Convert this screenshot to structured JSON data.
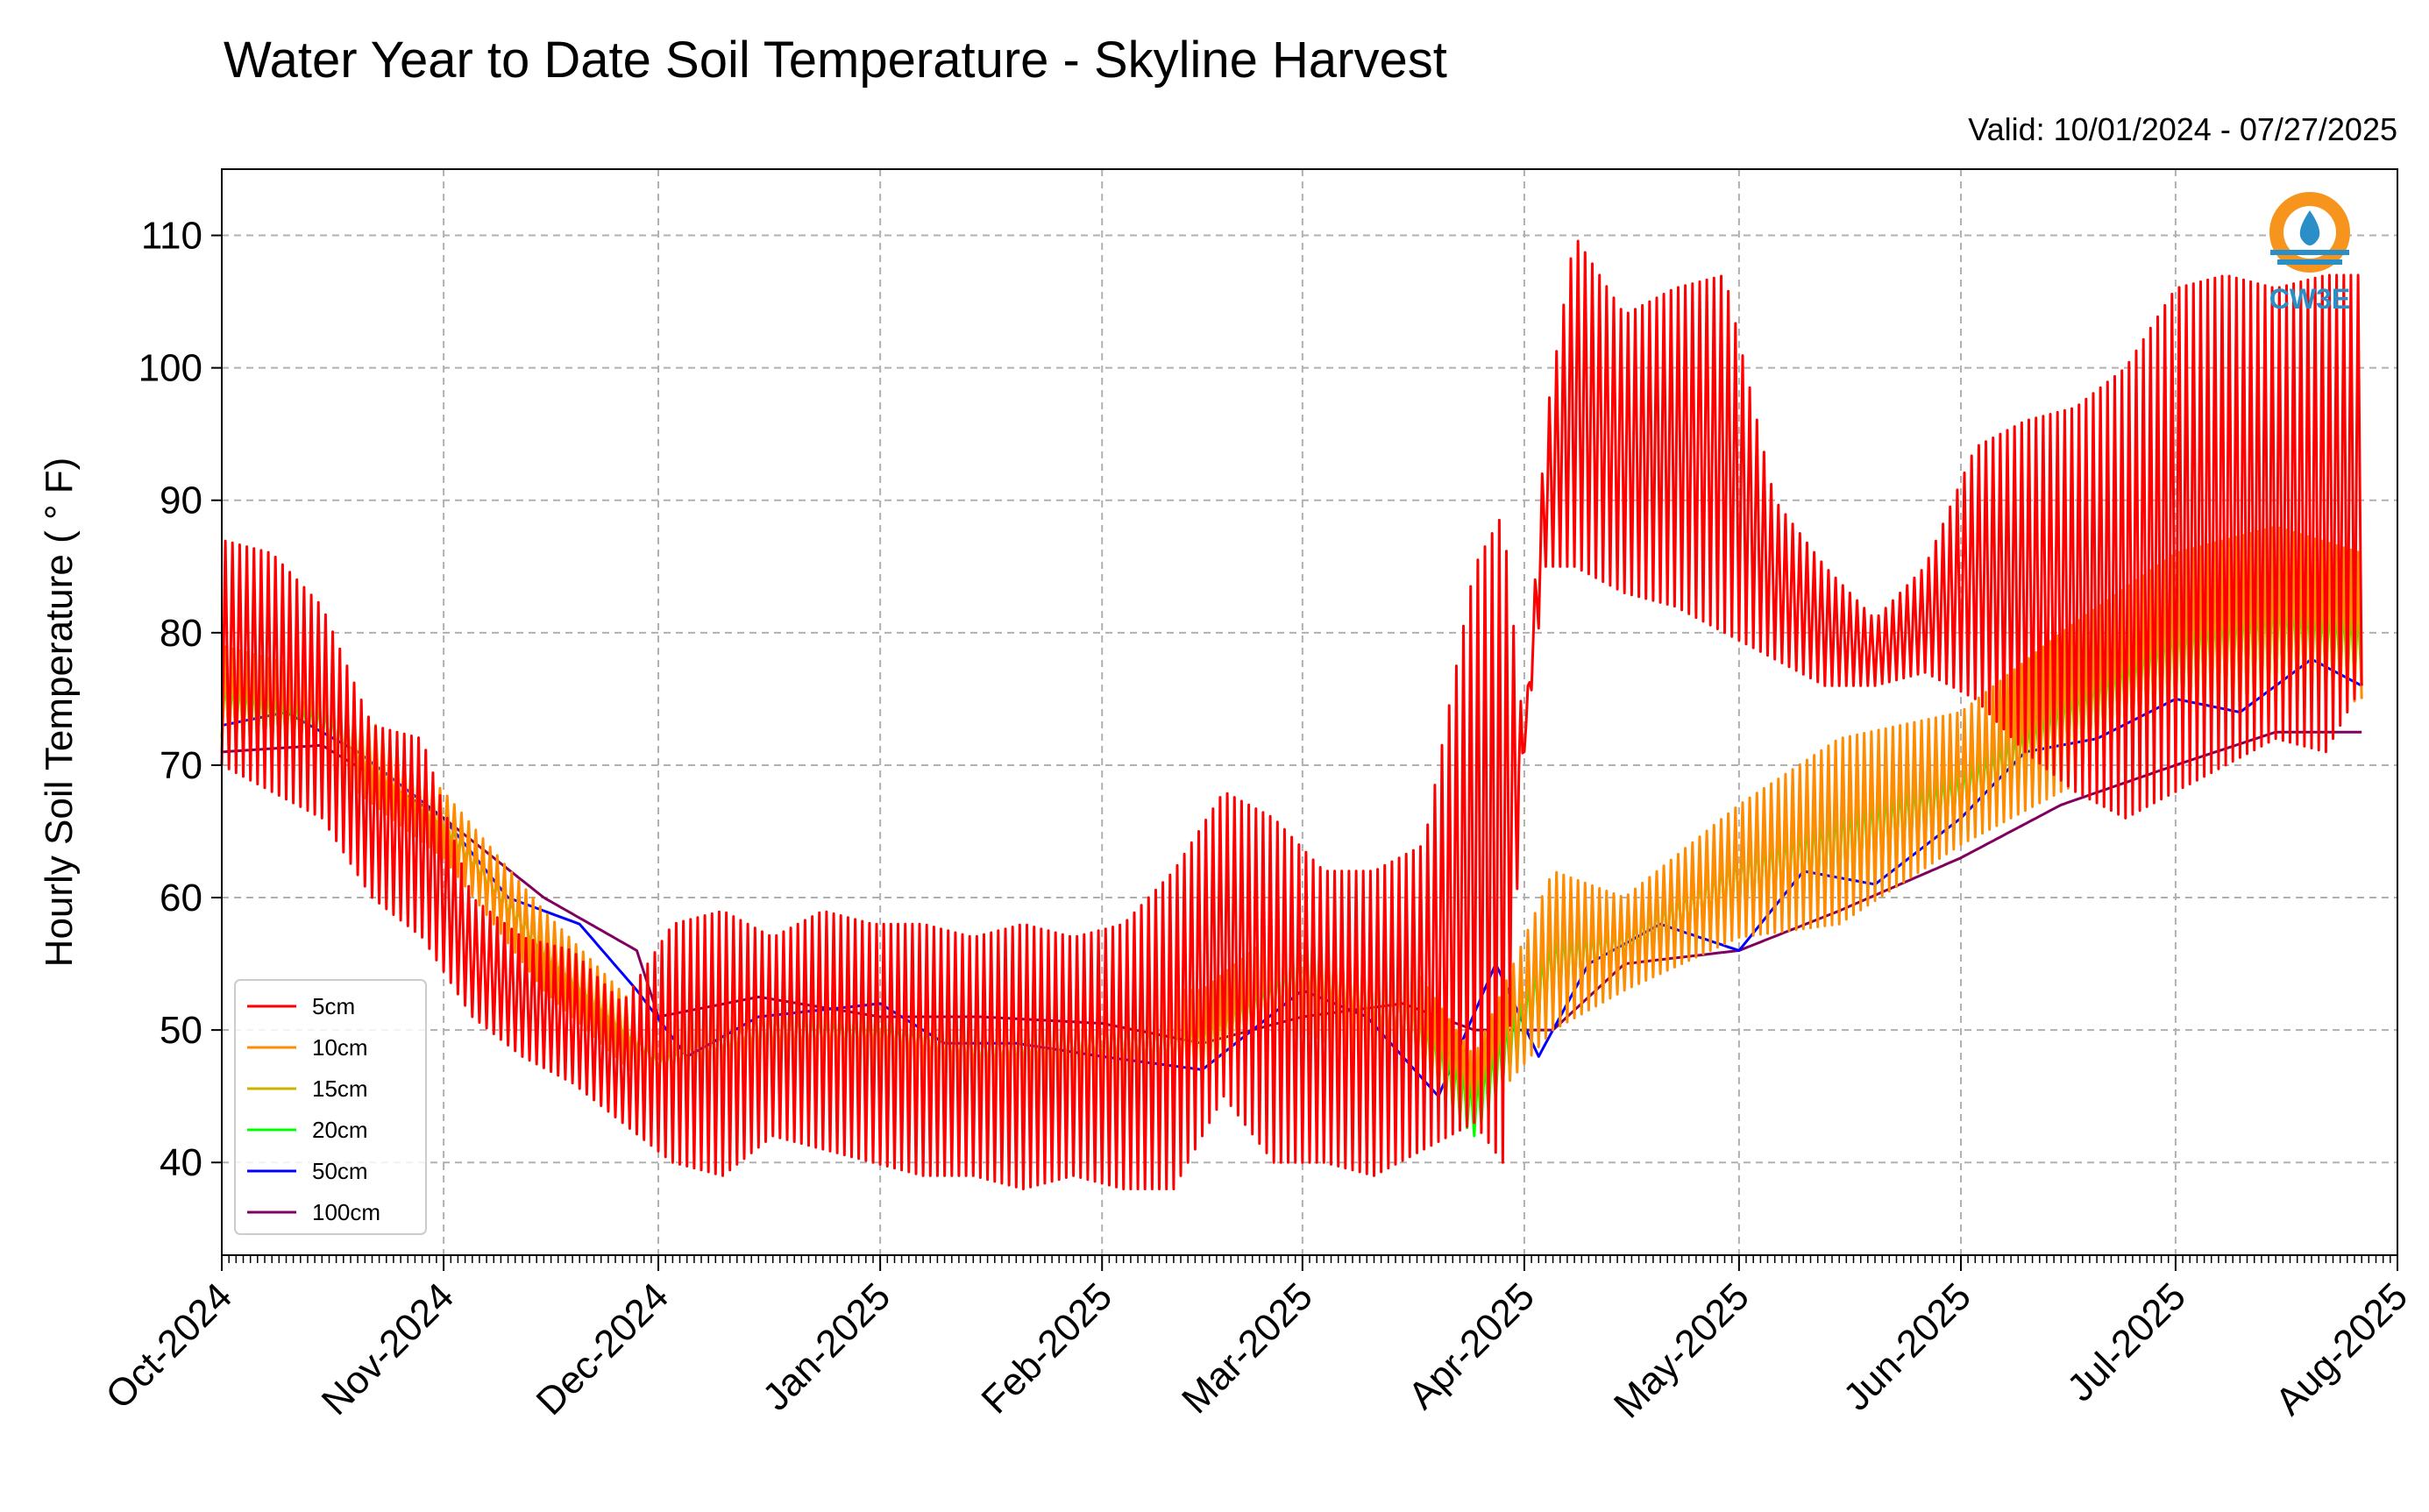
{
  "chart_data": {
    "type": "line",
    "title": "Water Year to Date Soil Temperature - Skyline Harvest",
    "subtitle": "Valid: 10/01/2024 - 07/27/2025",
    "ylabel": "Hourly Soil Temperature ( ° F)",
    "xlabel": "",
    "ylim": [
      33,
      115
    ],
    "yticks": [
      40,
      50,
      60,
      70,
      80,
      90,
      100,
      110
    ],
    "xlim": [
      "2024-10-01",
      "2025-08-01"
    ],
    "xtick_dates": [
      "2024-10-01",
      "2024-11-01",
      "2024-12-01",
      "2025-01-01",
      "2025-02-01",
      "2025-03-01",
      "2025-04-01",
      "2025-05-01",
      "2025-06-01",
      "2025-07-01",
      "2025-08-01"
    ],
    "xtick_labels": [
      "Oct-2024",
      "Nov-2024",
      "Dec-2024",
      "Jan-2025",
      "Feb-2025",
      "Mar-2025",
      "Apr-2025",
      "May-2025",
      "Jun-2025",
      "Jul-2025",
      "Aug-2025"
    ],
    "grid": true,
    "legend_position": "lower-left",
    "logo_text": "CW3E",
    "series": [
      {
        "name": "5cm",
        "color": "#ff0000",
        "x": [
          "2024-10-01",
          "2024-10-08",
          "2024-10-15",
          "2024-10-22",
          "2024-10-29",
          "2024-11-05",
          "2024-11-12",
          "2024-11-19",
          "2024-11-26",
          "2024-12-03",
          "2024-12-10",
          "2024-12-17",
          "2024-12-24",
          "2024-12-31",
          "2025-01-07",
          "2025-01-14",
          "2025-01-21",
          "2025-01-28",
          "2025-02-04",
          "2025-02-11",
          "2025-02-18",
          "2025-02-25",
          "2025-03-04",
          "2025-03-11",
          "2025-03-18",
          "2025-03-25",
          "2025-03-29",
          "2025-04-01",
          "2025-04-04",
          "2025-04-08",
          "2025-04-15",
          "2025-04-22",
          "2025-04-29",
          "2025-05-06",
          "2025-05-13",
          "2025-05-20",
          "2025-05-27",
          "2025-06-03",
          "2025-06-10",
          "2025-06-17",
          "2025-06-24",
          "2025-07-01",
          "2025-07-08",
          "2025-07-15",
          "2025-07-22",
          "2025-07-27"
        ],
        "max": [
          87,
          86,
          82,
          73,
          72,
          60,
          57,
          56,
          52,
          58,
          59,
          57,
          59,
          58,
          58,
          57,
          58,
          57,
          58,
          62,
          68,
          66,
          62,
          62,
          64,
          85,
          89,
          72,
          96,
          110,
          104,
          106,
          107,
          90,
          85,
          81,
          85,
          94,
          96,
          97,
          100,
          106,
          107,
          106,
          107,
          107
        ],
        "min": [
          70,
          68,
          66,
          60,
          57,
          51,
          48,
          46,
          43,
          40,
          39,
          42,
          41,
          40,
          39,
          39,
          38,
          39,
          38,
          38,
          45,
          40,
          40,
          39,
          41,
          43,
          40,
          71,
          85,
          85,
          83,
          82,
          80,
          78,
          76,
          76,
          77,
          75,
          71,
          68,
          66,
          68,
          70,
          72,
          71,
          76
        ]
      },
      {
        "name": "10cm",
        "color": "#ff8c00",
        "x": [
          "2024-10-01",
          "2024-10-15",
          "2024-11-01",
          "2024-11-15",
          "2024-12-01",
          "2024-12-15",
          "2025-01-01",
          "2025-01-15",
          "2025-02-01",
          "2025-02-15",
          "2025-03-01",
          "2025-03-15",
          "2025-03-25",
          "2025-04-05",
          "2025-04-15",
          "2025-05-01",
          "2025-05-15",
          "2025-06-01",
          "2025-06-15",
          "2025-07-01",
          "2025-07-15",
          "2025-07-27"
        ],
        "max": [
          79,
          77,
          68,
          59,
          50,
          54,
          53,
          52,
          53,
          53,
          59,
          56,
          48,
          62,
          60,
          67,
          72,
          74,
          80,
          86,
          88,
          86
        ],
        "min": [
          71,
          70,
          63,
          53,
          45,
          46,
          47,
          45,
          45,
          45,
          50,
          46,
          43,
          50,
          53,
          57,
          58,
          64,
          68,
          72,
          73,
          75
        ]
      },
      {
        "name": "15cm",
        "color": "#c8b400",
        "x": [
          "2024-10-01",
          "2024-10-15",
          "2024-11-01",
          "2024-11-15",
          "2024-12-01",
          "2024-12-15",
          "2025-01-01",
          "2025-01-15",
          "2025-02-01",
          "2025-02-15",
          "2025-03-01",
          "2025-03-15",
          "2025-03-25",
          "2025-04-05",
          "2025-04-15",
          "2025-05-01",
          "2025-05-15",
          "2025-06-01",
          "2025-06-15",
          "2025-07-01",
          "2025-07-15",
          "2025-07-27"
        ],
        "max": [
          78,
          76,
          67,
          58,
          49,
          53,
          52,
          51,
          52,
          52,
          58,
          55,
          47,
          60,
          59,
          65,
          70,
          72,
          78,
          84,
          86,
          84
        ],
        "min": [
          72,
          71,
          64,
          54,
          46,
          47,
          48,
          46,
          46,
          46,
          51,
          47,
          44,
          51,
          54,
          58,
          59,
          65,
          69,
          73,
          74,
          76
        ]
      },
      {
        "name": "20cm",
        "color": "#00ff00",
        "x": [
          "2024-10-01",
          "2024-10-15",
          "2024-11-01",
          "2024-11-15",
          "2024-12-01",
          "2024-12-15",
          "2025-01-01",
          "2025-01-15",
          "2025-02-01",
          "2025-02-15",
          "2025-03-01",
          "2025-03-15",
          "2025-03-25",
          "2025-04-05",
          "2025-04-15",
          "2025-05-01",
          "2025-05-15",
          "2025-06-01",
          "2025-06-15",
          "2025-07-01",
          "2025-07-15",
          "2025-07-27"
        ],
        "max": [
          77,
          75,
          66,
          57,
          48,
          52,
          51,
          50,
          51,
          51,
          56,
          54,
          46,
          58,
          58,
          64,
          68,
          70,
          76,
          82,
          84,
          82
        ],
        "min": [
          72,
          71,
          65,
          55,
          47,
          48,
          48,
          47,
          47,
          47,
          52,
          48,
          42,
          52,
          55,
          59,
          60,
          66,
          70,
          74,
          75,
          76
        ]
      },
      {
        "name": "50cm",
        "color": "#0000ff",
        "x": [
          "2024-10-01",
          "2024-10-10",
          "2024-10-20",
          "2024-11-01",
          "2024-11-10",
          "2024-11-20",
          "2024-11-28",
          "2024-12-05",
          "2024-12-15",
          "2025-01-01",
          "2025-01-10",
          "2025-01-20",
          "2025-02-01",
          "2025-02-15",
          "2025-03-01",
          "2025-03-10",
          "2025-03-20",
          "2025-03-28",
          "2025-04-03",
          "2025-04-10",
          "2025-04-20",
          "2025-05-01",
          "2025-05-10",
          "2025-05-20",
          "2025-06-01",
          "2025-06-10",
          "2025-06-20",
          "2025-07-01",
          "2025-07-10",
          "2025-07-20",
          "2025-07-27"
        ],
        "y": [
          73,
          74,
          71,
          66,
          60,
          58,
          53,
          48,
          51,
          52,
          49,
          49,
          48,
          47,
          53,
          51,
          45,
          55,
          48,
          55,
          58,
          56,
          62,
          61,
          66,
          71,
          72,
          75,
          74,
          78,
          76
        ]
      },
      {
        "name": "100cm",
        "color": "#800060",
        "x": [
          "2024-10-01",
          "2024-10-15",
          "2024-11-01",
          "2024-11-15",
          "2024-11-28",
          "2024-12-01",
          "2024-12-15",
          "2025-01-01",
          "2025-01-15",
          "2025-02-01",
          "2025-02-15",
          "2025-03-01",
          "2025-03-15",
          "2025-03-25",
          "2025-04-05",
          "2025-04-15",
          "2025-05-01",
          "2025-05-15",
          "2025-06-01",
          "2025-06-15",
          "2025-07-01",
          "2025-07-15",
          "2025-07-27"
        ],
        "y": [
          71,
          71.5,
          66,
          60,
          56,
          51,
          52.5,
          51,
          51,
          50.5,
          49,
          51,
          52,
          50,
          50,
          55,
          56,
          59,
          63,
          67,
          70,
          72.5,
          72.5
        ]
      }
    ]
  }
}
